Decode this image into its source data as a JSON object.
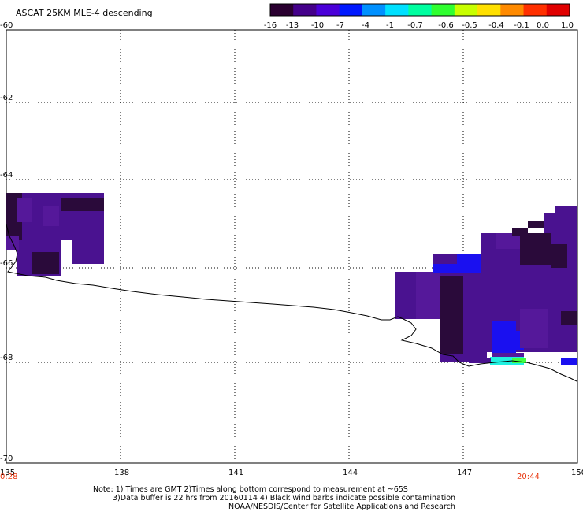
{
  "title": "ASCAT 25KM MLE-4 descending",
  "colorbar": {
    "labels": [
      "-16",
      "-13",
      "-10",
      "-7",
      "-4",
      "-1",
      "-0.7",
      "-0.6",
      "-0.5",
      "-0.4",
      "-0.1",
      "0.0",
      "1.0"
    ],
    "colors": [
      "#2a0030",
      "#44008a",
      "#4a00d8",
      "#0018ff",
      "#0090ff",
      "#00e0ff",
      "#00ffa0",
      "#30ff30",
      "#c8ff00",
      "#ffe000",
      "#ff8a00",
      "#ff3000",
      "#e00000"
    ]
  },
  "axes": {
    "lat_labels": [
      "-60",
      "-62",
      "-64",
      "-66",
      "-68",
      "-70"
    ],
    "lon_labels": [
      "135",
      "138",
      "141",
      "144",
      "147",
      "150"
    ]
  },
  "times": {
    "left": "0:28",
    "right": "20:44"
  },
  "notes": {
    "line1": "Note: 1) Times are GMT 2)Times along bottom correspond to measurement at ~65S",
    "line2": "3)Data buffer is 22 hrs from 20160114 4) Black wind barbs indicate possible contamination",
    "line3": "NOAA/NESDIS/Center for Satellite Applications and Research"
  },
  "map_colors": {
    "dark": "#2a0a3a",
    "purple": "#4a1290",
    "purple2": "#55189a",
    "blue": "#1a10f0",
    "cyan": "#20f0e0",
    "green": "#40ff40"
  }
}
